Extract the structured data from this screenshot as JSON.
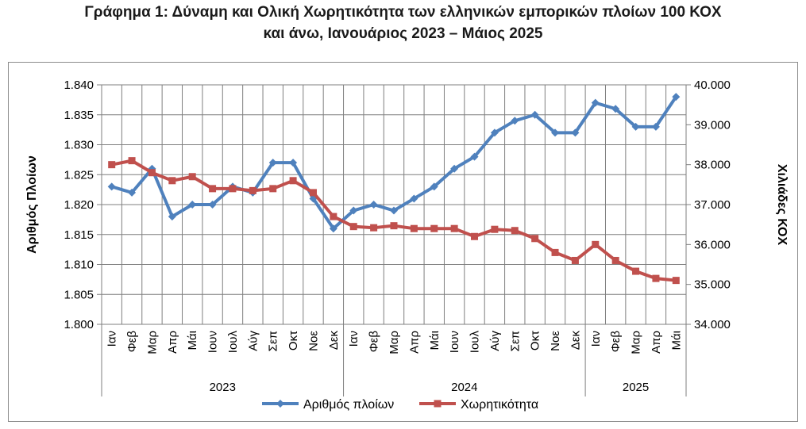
{
  "title_line1": "Γράφημα 1: Δύναμη και Ολική Χωρητικότητα των ελληνικών εμπορικών πλοίων 100 ΚΟΧ",
  "title_line2": "και άνω, Ιανουάριος 2023 – Μάιος 2025",
  "chart_data": {
    "type": "line",
    "title": "Γράφημα 1: Δύναμη και Ολική Χωρητικότητα των ελληνικών εμπορικών πλοίων 100 ΚΟΧ και άνω, Ιανουάριος 2023 – Μάιος 2025",
    "categories": [
      "Ιαν",
      "Φεβ",
      "Μαρ",
      "Απρ",
      "Μάι",
      "Ιουν",
      "Ιουλ",
      "Αύγ",
      "Σεπ",
      "Οκτ",
      "Νοε",
      "Δεκ",
      "Ιαν",
      "Φεβ",
      "Μαρ",
      "Απρ",
      "Μάι",
      "Ιουν",
      "Ιουλ",
      "Αύγ",
      "Σεπ",
      "Οκτ",
      "Νοε",
      "Δεκ",
      "Ιαν",
      "Φεβ",
      "Μαρ",
      "Απρ",
      "Μάι"
    ],
    "year_groups": [
      {
        "label": "2023",
        "count": 12
      },
      {
        "label": "2024",
        "count": 12
      },
      {
        "label": "2025",
        "count": 5
      }
    ],
    "ylabel_left": "Αριθμός Πλοίων",
    "ylabel_right": "Χιλιάδες ΚΟΧ",
    "ylim_left": [
      1800,
      1840
    ],
    "yticks_left": [
      "1.800",
      "1.805",
      "1.810",
      "1.815",
      "1.820",
      "1.825",
      "1.830",
      "1.835",
      "1.840"
    ],
    "ylim_right": [
      34000,
      40000
    ],
    "yticks_right": [
      "34.000",
      "35.000",
      "36.000",
      "37.000",
      "38.000",
      "39.000",
      "40.000"
    ],
    "grid": true,
    "legend_position": "bottom",
    "series": [
      {
        "name": "Αριθμός πλοίων",
        "axis": "left",
        "color": "#4f81bd",
        "marker": "diamond",
        "values": [
          1823,
          1822,
          1826,
          1818,
          1820,
          1820,
          1823,
          1822,
          1827,
          1827,
          1821,
          1816,
          1819,
          1820,
          1819,
          1821,
          1823,
          1826,
          1828,
          1832,
          1834,
          1835,
          1832,
          1832,
          1837,
          1836,
          1833,
          1833,
          1838
        ]
      },
      {
        "name": "Χωρητικότητα",
        "axis": "right",
        "color": "#c0504d",
        "marker": "square",
        "values": [
          38000,
          38100,
          37800,
          37600,
          37700,
          37400,
          37400,
          37350,
          37400,
          37600,
          37300,
          36700,
          36450,
          36420,
          36470,
          36400,
          36400,
          36400,
          36200,
          36380,
          36350,
          36150,
          35800,
          35600,
          36000,
          35600,
          35330,
          35150,
          35100
        ]
      }
    ]
  }
}
